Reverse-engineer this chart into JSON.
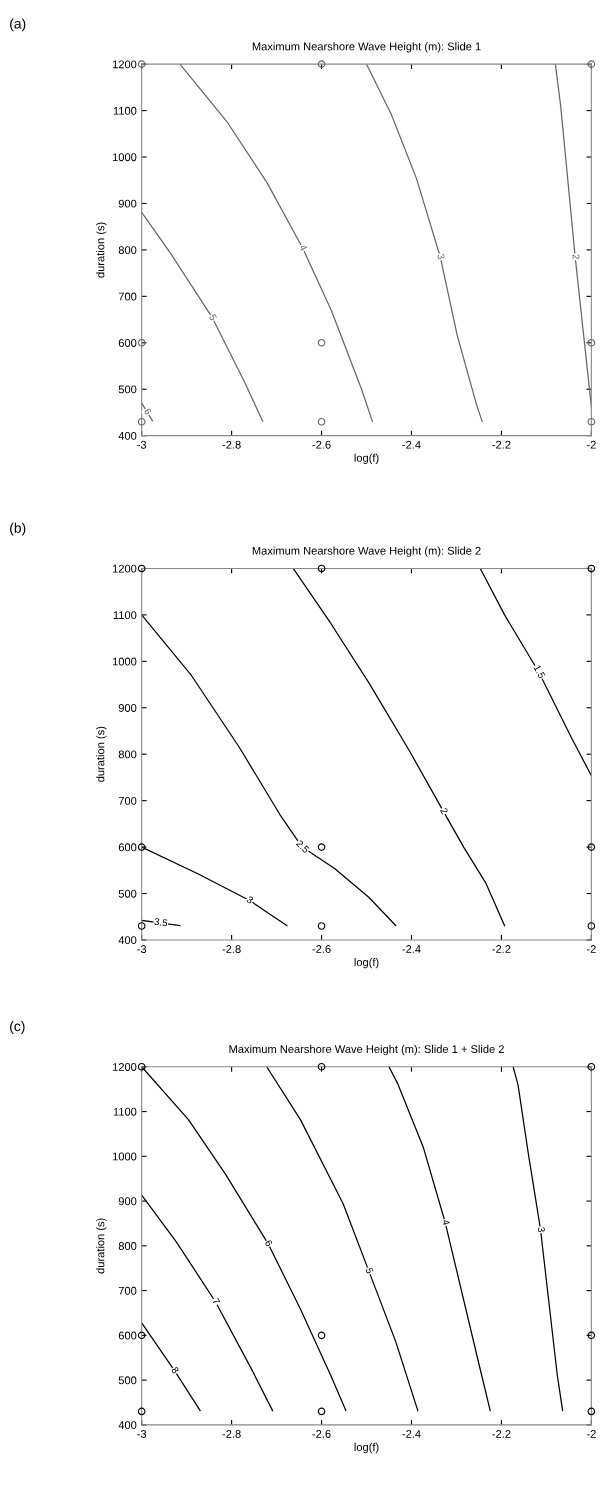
{
  "chart_data": [
    {
      "type": "line",
      "title": "Maximum Nearshore Wave Height (m): Slide 1",
      "xlabel": "log(f)",
      "ylabel": "duration (s)",
      "annotations": [
        "(a)"
      ],
      "xlim": [
        -3,
        -2
      ],
      "ylim": [
        400,
        1200
      ],
      "xticks": [
        -3,
        -2.8,
        -2.6,
        -2.4,
        -2.2,
        -2
      ],
      "yticks": [
        400,
        500,
        600,
        700,
        800,
        900,
        1000,
        1100,
        1200
      ],
      "series": [
        {
          "name": "6",
          "color": "#666666",
          "x": [
            -3,
            -2.976
          ],
          "values": [
            470,
            432
          ]
        },
        {
          "name": "5",
          "color": "#666666",
          "x": [
            -3,
            -2.938,
            -2.843,
            -2.771,
            -2.731
          ],
          "values": [
            881,
            796,
            654,
            515,
            431
          ]
        },
        {
          "name": "4",
          "color": "#666666",
          "x": [
            -2.915,
            -2.811,
            -2.722,
            -2.642,
            -2.578,
            -2.511,
            -2.487
          ],
          "values": [
            1200,
            1077,
            946,
            804,
            669,
            500,
            431
          ]
        },
        {
          "name": "3",
          "color": "#666666",
          "x": [
            -2.5,
            -2.445,
            -2.389,
            -2.336,
            -2.298,
            -2.256,
            -2.243
          ],
          "values": [
            1200,
            1092,
            954,
            785,
            615,
            469,
            431
          ]
        },
        {
          "name": "2",
          "color": "#666666",
          "x": [
            -2.08,
            -2.068,
            -2.036,
            -2.017,
            -2.0
          ],
          "values": [
            1200,
            1108,
            785,
            615,
            462
          ]
        },
        {
          "type": "scatter",
          "marker": "circle",
          "color": "#666666",
          "x": [
            -3,
            -2.6,
            -2,
            -3,
            -2.6,
            -2,
            -3,
            -2.6,
            -2
          ],
          "values": [
            1200,
            1200,
            1200,
            600,
            600,
            600,
            430,
            430,
            430
          ]
        }
      ]
    },
    {
      "type": "line",
      "title": "Maximum Nearshore Wave Height (m): Slide 2",
      "xlabel": "log(f)",
      "ylabel": "duration (s)",
      "annotations": [
        "(b)"
      ],
      "xlim": [
        -3,
        -2
      ],
      "ylim": [
        400,
        1200
      ],
      "xticks": [
        -3,
        -2.8,
        -2.6,
        -2.4,
        -2.2,
        -2
      ],
      "yticks": [
        400,
        500,
        600,
        700,
        800,
        900,
        1000,
        1100,
        1200
      ],
      "series": [
        {
          "name": "3.5",
          "color": "#000000",
          "x": [
            -3,
            -2.915
          ],
          "values": [
            442,
            431
          ]
        },
        {
          "name": "3",
          "color": "#000000",
          "x": [
            -3,
            -2.874,
            -2.76,
            -2.677
          ],
          "values": [
            600,
            542,
            485,
            431
          ]
        },
        {
          "name": "2.5",
          "color": "#000000",
          "x": [
            -3,
            -2.889,
            -2.783,
            -2.692,
            -2.643,
            -2.571,
            -2.495,
            -2.435
          ],
          "values": [
            1100,
            969,
            815,
            669,
            600,
            554,
            492,
            431
          ]
        },
        {
          "name": "2",
          "color": "#000000",
          "x": [
            -2.663,
            -2.579,
            -2.495,
            -2.405,
            -2.329,
            -2.284,
            -2.235,
            -2.193
          ],
          "values": [
            1200,
            1081,
            954,
            808,
            677,
            600,
            523,
            431
          ]
        },
        {
          "name": "1.5",
          "color": "#000000",
          "x": [
            -2.247,
            -2.193,
            -2.117,
            -2.042,
            -2.0
          ],
          "values": [
            1200,
            1100,
            977,
            831,
            754
          ]
        },
        {
          "type": "scatter",
          "marker": "circle",
          "color": "#000000",
          "x": [
            -3,
            -2.6,
            -2,
            -3,
            -2.6,
            -2,
            -3,
            -2.6,
            -2
          ],
          "values": [
            1200,
            1200,
            1200,
            600,
            600,
            600,
            430,
            430,
            430
          ]
        }
      ]
    },
    {
      "type": "line",
      "title": "Maximum Nearshore Wave Height (m): Slide 1 + Slide 2",
      "xlabel": "log(f)",
      "ylabel": "duration (s)",
      "annotations": [
        "(c)"
      ],
      "xlim": [
        -3,
        -2
      ],
      "ylim": [
        400,
        1200
      ],
      "xticks": [
        -3,
        -2.8,
        -2.6,
        -2.4,
        -2.2,
        -2
      ],
      "yticks": [
        400,
        500,
        600,
        700,
        800,
        900,
        1000,
        1100,
        1200
      ],
      "series": [
        {
          "name": "8",
          "color": "#000000",
          "x": [
            -3,
            -2.927,
            -2.87
          ],
          "values": [
            628,
            521,
            432
          ]
        },
        {
          "name": "7",
          "color": "#000000",
          "x": [
            -3,
            -2.923,
            -2.836,
            -2.756,
            -2.709
          ],
          "values": [
            913,
            809,
            675,
            525,
            432
          ]
        },
        {
          "name": "6",
          "color": "#000000",
          "x": [
            -3,
            -2.896,
            -2.813,
            -2.719,
            -2.647,
            -2.579,
            -2.546
          ],
          "values": [
            1200,
            1082,
            959,
            805,
            659,
            509,
            432
          ]
        },
        {
          "name": "5",
          "color": "#000000",
          "x": [
            -2.722,
            -2.647,
            -2.552,
            -2.495,
            -2.435,
            -2.386
          ],
          "values": [
            1200,
            1082,
            894,
            744,
            586,
            432
          ]
        },
        {
          "name": "4",
          "color": "#000000",
          "x": [
            -2.45,
            -2.431,
            -2.374,
            -2.325,
            -2.25,
            -2.225
          ],
          "values": [
            1200,
            1163,
            1021,
            852,
            536,
            432
          ]
        },
        {
          "name": "3",
          "color": "#000000",
          "x": [
            -2.174,
            -2.163,
            -2.14,
            -2.113,
            -2.076,
            -2.064
          ],
          "values": [
            1200,
            1159,
            1005,
            836,
            513,
            432
          ]
        },
        {
          "type": "scatter",
          "marker": "circle",
          "color": "#000000",
          "x": [
            -3,
            -2.6,
            -2,
            -3,
            -2.6,
            -2,
            -3,
            -2.6,
            -2
          ],
          "values": [
            1200,
            1200,
            1200,
            600,
            600,
            600,
            430,
            430,
            430
          ]
        }
      ]
    }
  ]
}
